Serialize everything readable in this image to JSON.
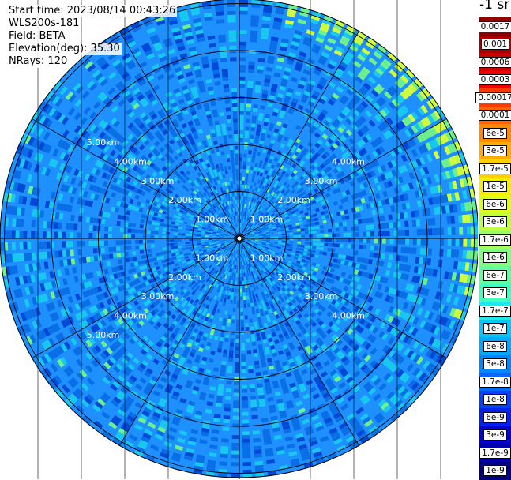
{
  "info": {
    "start_time": "Start time: 2023/08/14 00:43:26",
    "instrument": "WLS200s-181",
    "field": "Field: BETA",
    "elevation": "Elevation(deg): 35.30",
    "nrays": "NRays: 120"
  },
  "colorbar": {
    "unit_label": "-1 sr",
    "labels": [
      "0.0017",
      "0.001",
      "0.0006",
      "0.0003",
      "0.00017",
      "0.0001",
      "6e-5",
      "3e-5",
      "1.7e-5",
      "1e-5",
      "6e-6",
      "3e-6",
      "1.7e-6",
      "1e-6",
      "6e-7",
      "3e-7",
      "1.7e-7",
      "1e-7",
      "6e-8",
      "3e-8",
      "1.7e-8",
      "1e-8",
      "6e-9",
      "3e-9",
      "1.7e-9",
      "1e-9"
    ],
    "colors": [
      "#8b0000",
      "#a80000",
      "#cf0000",
      "#f00000",
      "#ff3a00",
      "#ff6400",
      "#ff8a00",
      "#ffae00",
      "#ffd000",
      "#f2f000",
      "#e0ff18",
      "#c0ff40",
      "#a0ff60",
      "#80ff80",
      "#60ffa0",
      "#40ffc0",
      "#20e8e8",
      "#00c8ff",
      "#00a8ff",
      "#0088ff",
      "#0068ff",
      "#0040ff",
      "#0020ee",
      "#0000d0",
      "#0000a8",
      "#000080"
    ]
  },
  "ppi": {
    "range_ring_labels": [
      "1.00km",
      "2.00km",
      "3.00km",
      "4.00km",
      "5.00km"
    ],
    "ring_labels_upper_left": [
      "1.00km",
      "2.00km",
      "3.00km",
      "4.00km",
      "5.00km"
    ],
    "ring_labels_upper_right": [
      "1.00km",
      "2.00km",
      "3.00km",
      "4.00km"
    ],
    "ring_labels_lower_left": [
      "1.00km",
      "2.00km",
      "3.00km",
      "4.00km",
      "5.00km"
    ],
    "ring_labels_lower_right": [
      "1.00km",
      "2.00km",
      "3.00km",
      "4.00km"
    ],
    "colors": {
      "background_blue": "#1e90ff",
      "mid_blue": "#0a6ee6",
      "cyan": "#18c8f0",
      "green": "#6ef08c",
      "yellow_green": "#d2ff3c",
      "dark_blue": "#0048d8",
      "grid": "#000000"
    }
  }
}
